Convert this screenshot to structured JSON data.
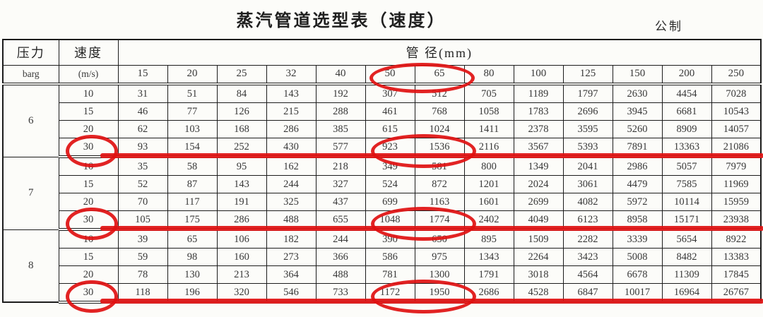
{
  "title": "蒸汽管道选型表（速度）",
  "unit_system_label": "公制",
  "table": {
    "pressure_header": "压力",
    "pressure_unit": "barg",
    "velocity_header": "速度",
    "velocity_unit": "(m/s)",
    "diameter_header": "管 径(mm)",
    "diameter_columns": [
      "15",
      "20",
      "25",
      "32",
      "40",
      "50",
      "65",
      "80",
      "100",
      "125",
      "150",
      "200",
      "250"
    ],
    "blocks": [
      {
        "pressure": "6",
        "rows": [
          {
            "velocity": "10",
            "values": [
              31,
              51,
              84,
              143,
              192,
              307,
              512,
              705,
              1189,
              1797,
              2630,
              4454,
              7028
            ]
          },
          {
            "velocity": "15",
            "values": [
              46,
              77,
              126,
              215,
              288,
              461,
              768,
              1058,
              1783,
              2696,
              3945,
              6681,
              10543
            ]
          },
          {
            "velocity": "20",
            "values": [
              62,
              103,
              168,
              286,
              385,
              615,
              1024,
              1411,
              2378,
              3595,
              5260,
              8909,
              14057
            ]
          },
          {
            "velocity": "30",
            "values": [
              93,
              154,
              252,
              430,
              577,
              923,
              1536,
              2116,
              3567,
              5393,
              7891,
              13363,
              21086
            ]
          }
        ]
      },
      {
        "pressure": "7",
        "rows": [
          {
            "velocity": "10",
            "values": [
              35,
              58,
              95,
              162,
              218,
              349,
              581,
              800,
              1349,
              2041,
              2986,
              5057,
              7979
            ]
          },
          {
            "velocity": "15",
            "values": [
              52,
              87,
              143,
              244,
              327,
              524,
              872,
              1201,
              2024,
              3061,
              4479,
              7585,
              11969
            ]
          },
          {
            "velocity": "20",
            "values": [
              70,
              117,
              191,
              325,
              437,
              699,
              1163,
              1601,
              2699,
              4082,
              5972,
              10114,
              15959
            ]
          },
          {
            "velocity": "30",
            "values": [
              105,
              175,
              286,
              488,
              655,
              1048,
              1774,
              2402,
              4049,
              6123,
              8958,
              15171,
              23938
            ]
          }
        ]
      },
      {
        "pressure": "8",
        "rows": [
          {
            "velocity": "10",
            "values": [
              39,
              65,
              106,
              182,
              244,
              390,
              650,
              895,
              1509,
              2282,
              3339,
              5654,
              8922
            ]
          },
          {
            "velocity": "15",
            "values": [
              59,
              98,
              160,
              273,
              366,
              586,
              975,
              1343,
              2264,
              3423,
              5008,
              8482,
              13383
            ]
          },
          {
            "velocity": "20",
            "values": [
              78,
              130,
              213,
              364,
              488,
              781,
              1300,
              1791,
              3018,
              4564,
              6678,
              11309,
              17845
            ]
          },
          {
            "velocity": "30",
            "values": [
              118,
              196,
              320,
              546,
              733,
              1172,
              1950,
              2686,
              4528,
              6847,
              10017,
              16964,
              26767
            ]
          }
        ]
      }
    ]
  },
  "annotations": {
    "marker_color": "#e01010",
    "circled_diameter_columns": [
      "50",
      "65"
    ],
    "circled_velocity": "30",
    "underlined_velocity": "30"
  }
}
